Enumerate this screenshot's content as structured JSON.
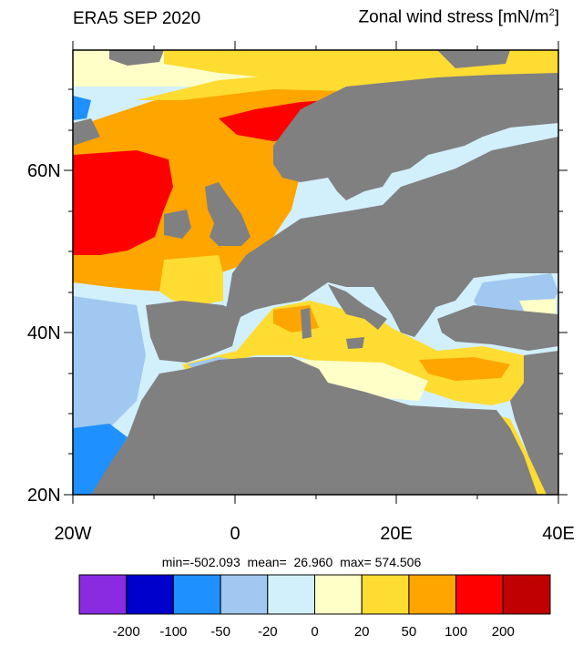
{
  "title_left": "ERA5 SEP 2020",
  "title_right": {
    "text": "Zonal wind stress [mN/m",
    "sup": "2",
    "close": "]"
  },
  "lat_labels": [
    "60N",
    "40N",
    "20N"
  ],
  "lon_labels": [
    "20W",
    "0",
    "20E",
    "40E"
  ],
  "stats": "min=-502.093  mean=  26.960  max= 574.506",
  "colorbar": {
    "colors": [
      "#8a2be2",
      "#0000cd",
      "#1e90ff",
      "#a0c8f0",
      "#d2f0fc",
      "#ffffc8",
      "#ffdc32",
      "#ffa500",
      "#ff0000",
      "#c00000"
    ],
    "labels": [
      "-200",
      "-100",
      "-50",
      "-20",
      "0",
      "20",
      "50",
      "100",
      "200"
    ]
  },
  "land_color": "#808080"
}
